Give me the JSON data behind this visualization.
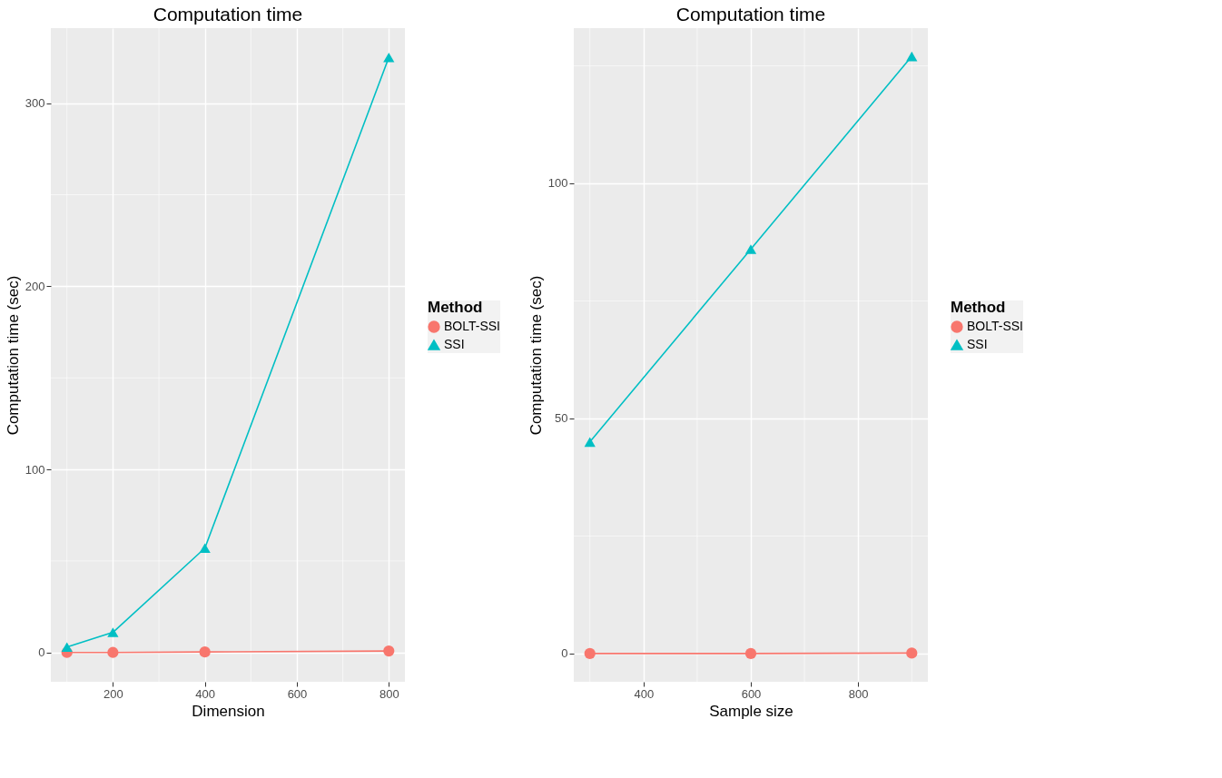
{
  "chart_data": [
    {
      "type": "line",
      "title": "Computation time",
      "xlabel": "Dimension",
      "ylabel": "Computation time (sec)",
      "legend_title": "Method",
      "legend": "right",
      "grid": true,
      "marker": "circle",
      "line_style": "solid",
      "x": [
        100,
        200,
        400,
        800
      ],
      "xlim": [
        65,
        835
      ],
      "xticks": [
        200,
        400,
        600,
        800
      ],
      "ylim": [
        -16,
        341
      ],
      "yticks": [
        0,
        100,
        200,
        300
      ],
      "series": [
        {
          "name": "BOLT-SSI",
          "color": "#f8766d",
          "marker": "circle",
          "values": [
            0,
            0,
            0.3,
            0.8
          ]
        },
        {
          "name": "SSI",
          "color": "#00bfc4",
          "marker": "triangle",
          "values": [
            3,
            11,
            57,
            325
          ]
        }
      ]
    },
    {
      "type": "line",
      "title": "Computation time",
      "xlabel": "Sample size",
      "ylabel": "Computation time (sec)",
      "legend_title": "Method",
      "legend": "right",
      "grid": true,
      "marker": "circle",
      "line_style": "solid",
      "x": [
        300,
        600,
        900
      ],
      "xlim": [
        270,
        930
      ],
      "xticks": [
        400,
        600,
        800
      ],
      "ylim": [
        -6,
        133
      ],
      "yticks": [
        0,
        50,
        100
      ],
      "series": [
        {
          "name": "BOLT-SSI",
          "color": "#f8766d",
          "marker": "circle",
          "values": [
            0,
            0,
            0.1
          ]
        },
        {
          "name": "SSI",
          "color": "#00bfc4",
          "marker": "triangle",
          "values": [
            45,
            86,
            127
          ]
        }
      ]
    }
  ]
}
